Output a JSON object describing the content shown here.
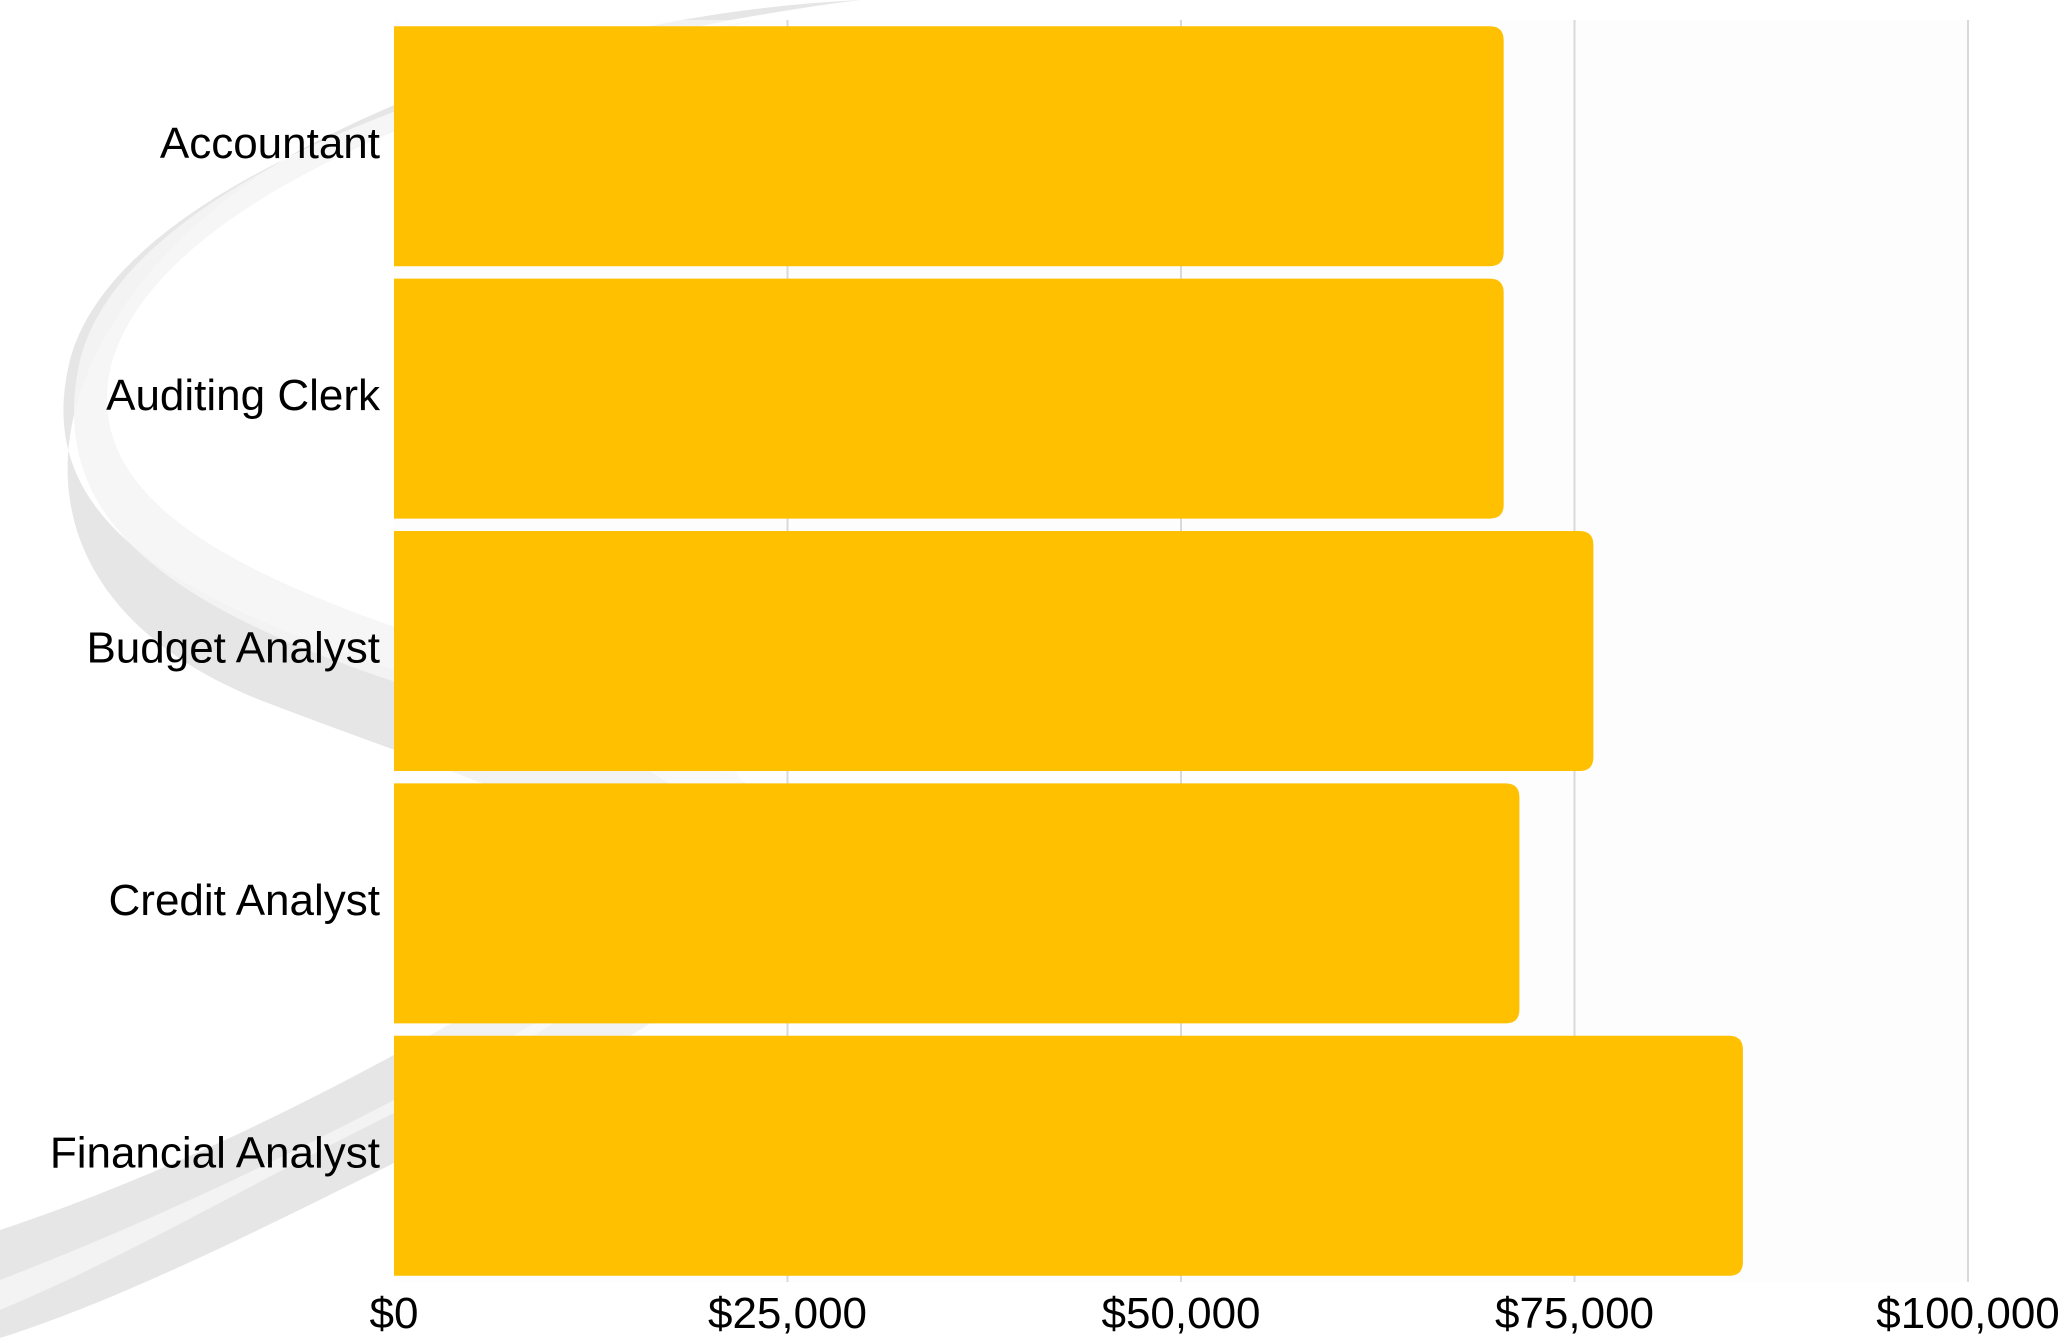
{
  "chart_data": {
    "type": "bar",
    "orientation": "horizontal",
    "categories": [
      "Accountant",
      "Auditing Clerk",
      "Budget Analyst",
      "Credit Analyst",
      "Financial Analyst"
    ],
    "values": [
      70500,
      70500,
      76200,
      71500,
      85700
    ],
    "xlim": [
      0,
      100000
    ],
    "xticks": [
      0,
      25000,
      50000,
      75000,
      100000
    ],
    "xtick_labels": [
      "$0",
      "$25,000",
      "$50,000",
      "$75,000",
      "$100,000"
    ],
    "title": "",
    "xlabel": "",
    "ylabel": "",
    "grid": "vertical",
    "legend": "none",
    "colors": {
      "bar": "#FFC000",
      "grid": "#D9D9D9",
      "plot_background": "#FCFCFC",
      "watermark": "#D0D0D0",
      "text": "#000000"
    }
  }
}
